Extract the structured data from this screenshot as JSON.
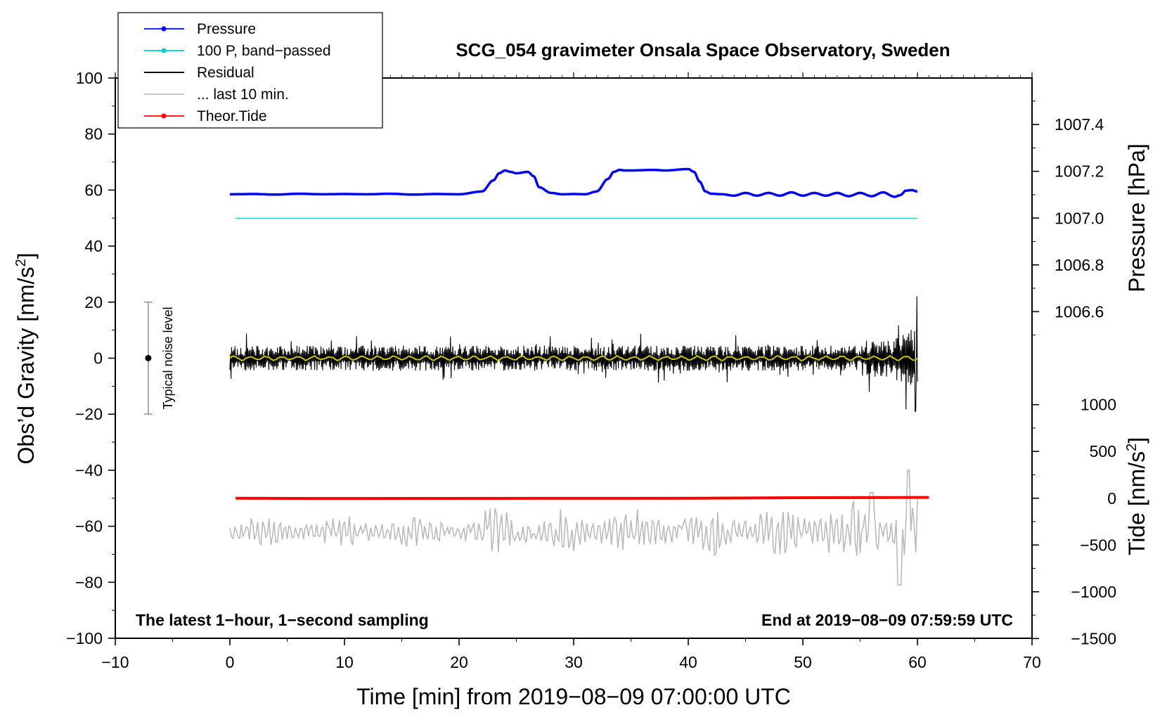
{
  "chart_data": {
    "type": "line",
    "title": "SCG_054 gravimeter Onsala Space Observatory, Sweden",
    "xlabel": "Time [min] from 2019−08−09 07:00:00 UTC",
    "ylabel_left_pre": "Obs’d Gravity [nm/s",
    "ylabel_left_sup": "2",
    "ylabel_left_post": "]",
    "ylabel_right_pressure": "Pressure [hPa]",
    "ylabel_right_tide_pre": "Tide [nm/s",
    "ylabel_right_tide_sup": "2",
    "ylabel_right_tide_post": "]",
    "xlim": [
      -10,
      70
    ],
    "ylim": [
      -100,
      100
    ],
    "x_ticks": [
      -10,
      0,
      10,
      20,
      30,
      40,
      50,
      60,
      70
    ],
    "x_tick_labels": [
      "−10",
      "0",
      "10",
      "20",
      "30",
      "40",
      "50",
      "60",
      "70"
    ],
    "y_ticks": [
      100,
      80,
      60,
      40,
      20,
      0,
      -20,
      -40,
      -60,
      -80,
      -100
    ],
    "y_tick_labels": [
      "100",
      "80",
      "60",
      "40",
      "20",
      "0",
      "−20",
      "−40",
      "−60",
      "−80",
      "−100"
    ],
    "pressure_axis": {
      "ticks": [
        1007.4,
        1007.2,
        1007.0,
        1006.8,
        1006.6
      ],
      "tick_labels": [
        "1007.4",
        "1007.2",
        "1007.0",
        "1006.8",
        "1006.6"
      ],
      "mapping": "1007.0 hPa at gravity 50; 0.2 hPa per 16.7 gravity units"
    },
    "tide_axis": {
      "ticks": [
        1000,
        500,
        0,
        -500,
        -1000,
        -1500
      ],
      "tick_labels": [
        "1000",
        "500",
        "0",
        "−500",
        "−1000",
        "−1500"
      ],
      "mapping": "0 nm/s2 at gravity -50; 500 nm/s2 per 16.7 gravity units"
    },
    "legend": {
      "placement": "top-left",
      "entries": [
        {
          "label": "Pressure",
          "color": "#0000ff",
          "marker": true
        },
        {
          "label": "100 P, band−passed",
          "color": "#00cccc",
          "marker": true
        },
        {
          "label": "Residual",
          "color": "#000000",
          "marker": false
        },
        {
          "label": "... last 10 min.",
          "color": "#bbbbbb",
          "marker": false
        },
        {
          "label": "Theor.Tide",
          "color": "#ff0000",
          "marker": true
        }
      ]
    },
    "noise_bar": {
      "label": "Typical noise level",
      "x": -7,
      "center": 0,
      "low": -20,
      "high": 20
    },
    "annotations": {
      "bottom_left": "The latest 1−hour, 1−second sampling",
      "bottom_right": "End at 2019−08−09 07:59:59 UTC"
    },
    "series": [
      {
        "name": "Pressure",
        "color": "#0000ff",
        "x": [
          0,
          2,
          4,
          6,
          8,
          10,
          12,
          14,
          16,
          18,
          20,
          22,
          23,
          23.5,
          24,
          24.5,
          25,
          26,
          26.5,
          27,
          28,
          29,
          30,
          31,
          32,
          33,
          33.5,
          34,
          34.5,
          35,
          37,
          38,
          40,
          40.5,
          41,
          41.5,
          42,
          43,
          44,
          45,
          46,
          47,
          48,
          49,
          50,
          51,
          52,
          53,
          54,
          55,
          56,
          57,
          58,
          58.5,
          59,
          59.5,
          60
        ],
        "y": [
          58.5,
          58.6,
          58.4,
          58.7,
          58.5,
          58.6,
          58.5,
          58.7,
          58.4,
          58.6,
          58.5,
          59.5,
          63.5,
          66.0,
          67.0,
          66.5,
          66.0,
          66.5,
          65.0,
          61.0,
          59.0,
          58.5,
          58.6,
          58.5,
          59.5,
          64.0,
          66.5,
          67.2,
          67.0,
          67.0,
          67.2,
          67.0,
          67.5,
          66.5,
          63.0,
          59.5,
          58.7,
          58.5,
          58.0,
          59.0,
          58.0,
          59.0,
          58.0,
          59.2,
          58.0,
          59.0,
          58.0,
          59.0,
          57.8,
          59.0,
          57.8,
          59.2,
          57.6,
          58.2,
          59.8,
          60.0,
          59.5
        ]
      },
      {
        "name": "100 P, band−passed",
        "color": "#00cccc",
        "x": [
          0.5,
          60
        ],
        "y": [
          50,
          50
        ]
      },
      {
        "name": "Residual",
        "color": "#000000",
        "x_range": [
          0,
          60
        ],
        "typical_amplitude": 3,
        "final_spike_max": 22,
        "final_spike_min": -19
      },
      {
        "name": "Residual smoothed",
        "color": "#c8c800",
        "x_range": [
          0,
          60
        ],
        "typical_amplitude": 0.6
      },
      {
        "name": "... last 10 min.",
        "color": "#bbbbbb",
        "x_range": [
          0,
          60
        ],
        "center": -62,
        "typical_amplitude": 4,
        "min": -81,
        "max": -40
      },
      {
        "name": "Theor.Tide",
        "color": "#ff0000",
        "x": [
          0.5,
          7,
          41,
          50,
          61
        ],
        "y": [
          -50,
          -50.1,
          -50.0,
          -49.8,
          -49.7
        ]
      }
    ]
  }
}
